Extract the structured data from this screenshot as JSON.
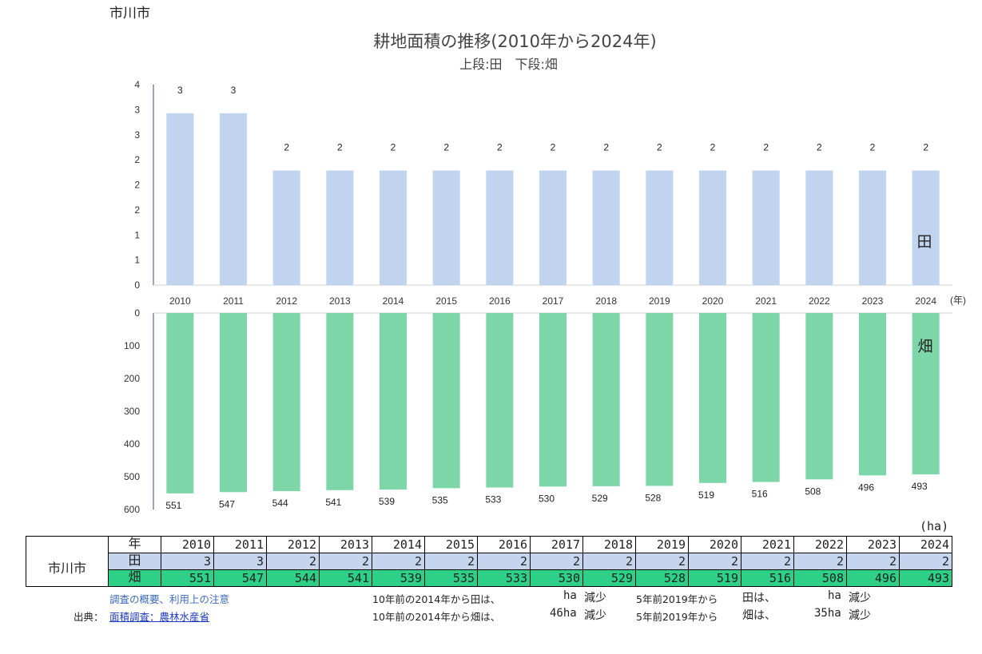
{
  "city": "市川市",
  "unit": "(ha)",
  "chart_data": [
    {
      "type": "bar",
      "title": "耕地面積の推移(2010年から2024年)",
      "subtitle": "上段:田　下段:畑",
      "series_label": "田",
      "x_unit": "(年)",
      "categories": [
        "2010",
        "2011",
        "2012",
        "2013",
        "2014",
        "2015",
        "2016",
        "2017",
        "2018",
        "2019",
        "2020",
        "2021",
        "2022",
        "2023",
        "2024"
      ],
      "values": [
        3,
        3,
        2,
        2,
        2,
        2,
        2,
        2,
        2,
        2,
        2,
        2,
        2,
        2,
        2
      ],
      "yticks": [
        "0",
        "1",
        "1",
        "2",
        "2",
        "2",
        "3",
        "3",
        "4"
      ],
      "color": "#c0d3ef"
    },
    {
      "type": "bar",
      "series_label": "畑",
      "categories": [
        "2010",
        "2011",
        "2012",
        "2013",
        "2014",
        "2015",
        "2016",
        "2017",
        "2018",
        "2019",
        "2020",
        "2021",
        "2022",
        "2023",
        "2024"
      ],
      "values": [
        551,
        547,
        544,
        541,
        539,
        535,
        533,
        530,
        529,
        528,
        519,
        516,
        508,
        496,
        493
      ],
      "yticks": [
        "0",
        "100",
        "200",
        "300",
        "400",
        "500",
        "600"
      ],
      "ylim": [
        0,
        600
      ],
      "inverted": true,
      "color": "#7dd6a8"
    }
  ],
  "table": {
    "header_label": "年",
    "city_label": "市川市",
    "row_ta_label": "田",
    "row_ha_label": "畑",
    "years": [
      "2010",
      "2011",
      "2012",
      "2013",
      "2014",
      "2015",
      "2016",
      "2017",
      "2018",
      "2019",
      "2020",
      "2021",
      "2022",
      "2023",
      "2024"
    ],
    "ta": [
      "3",
      "3",
      "2",
      "2",
      "2",
      "2",
      "2",
      "2",
      "2",
      "2",
      "2",
      "2",
      "2",
      "2",
      "2"
    ],
    "ha": [
      "551",
      "547",
      "544",
      "541",
      "539",
      "535",
      "533",
      "530",
      "529",
      "528",
      "519",
      "516",
      "508",
      "496",
      "493"
    ]
  },
  "footer": {
    "survey_link": "調査の概要、利用上の注意",
    "source_label": "出典：",
    "source_link": "面積調査：農林水産省",
    "l1a": "10年前の2014年から田は、",
    "l1b": "ha",
    "l1c": "減少",
    "l1d": "5年前2019年から",
    "l1e": "田は、",
    "l1f": "ha",
    "l1g": "減少",
    "l2a": "10年前の2014年から畑は、",
    "l2b": "46ha",
    "l2c": "減少",
    "l2d": "5年前2019年から",
    "l2e": "畑は、",
    "l2f": "35ha",
    "l2g": "減少"
  },
  "colors": {
    "ta": "#c0d3ef",
    "ha": "#7dd6a8",
    "table_ta": "#c5d5ee",
    "table_ha": "#2ecf86",
    "link": "#1f3cbf"
  }
}
